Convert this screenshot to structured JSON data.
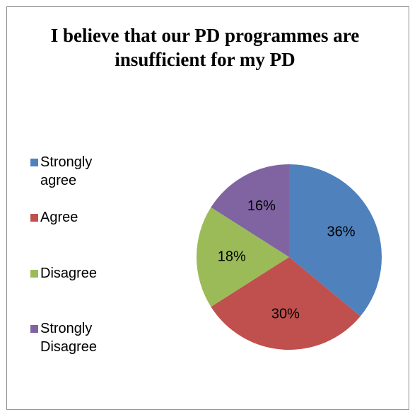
{
  "chart_data": {
    "type": "pie",
    "title": "I believe that our PD programmes are insufficient for my PD",
    "categories": [
      "Strongly agree",
      "Agree",
      "Disagree",
      "Strongly Disagree"
    ],
    "values": [
      36,
      30,
      18,
      16
    ],
    "value_labels": [
      "36%",
      "30%",
      "18%",
      "16%"
    ],
    "colors": [
      "#4f81bd",
      "#c0504d",
      "#9bbb59",
      "#8064a2"
    ],
    "legend": "left"
  }
}
